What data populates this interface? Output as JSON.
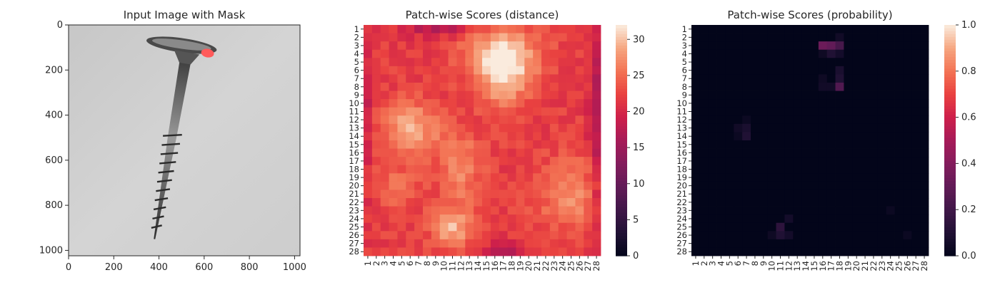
{
  "chart_data": [
    {
      "type": "image",
      "title": "Input Image with Mask",
      "xlim": [
        0,
        1024
      ],
      "ylim": [
        1024,
        0
      ],
      "xticks": [
        0,
        200,
        400,
        600,
        800,
        1000
      ],
      "yticks": [
        0,
        200,
        400,
        600,
        800,
        1000
      ],
      "mask_color": "#ff5a5a"
    },
    {
      "type": "heatmap",
      "title": "Patch-wise Scores (distance)",
      "rows": 28,
      "cols": 28,
      "row_labels": [
        "1",
        "2",
        "3",
        "4",
        "5",
        "6",
        "7",
        "8",
        "9",
        "10",
        "11",
        "12",
        "13",
        "14",
        "15",
        "16",
        "17",
        "18",
        "19",
        "20",
        "21",
        "22",
        "23",
        "24",
        "25",
        "26",
        "27",
        "28"
      ],
      "col_labels": [
        "1",
        "2",
        "3",
        "4",
        "5",
        "6",
        "7",
        "8",
        "9",
        "10",
        "11",
        "12",
        "13",
        "14",
        "15",
        "16",
        "17",
        "18",
        "19",
        "20",
        "21",
        "22",
        "23",
        "24",
        "25",
        "26",
        "27",
        "28"
      ],
      "vmin": 0,
      "vmax": 32,
      "colorbar_ticks": [
        0,
        5,
        10,
        15,
        20,
        25,
        30
      ],
      "base_value": 22,
      "bright_regions": [
        {
          "row": 4,
          "col": 17,
          "sr": 2.2,
          "sc": 3.0,
          "amp": 8
        },
        {
          "row": 7,
          "col": 17,
          "sr": 2.5,
          "sc": 2.2,
          "amp": 7
        },
        {
          "row": 13,
          "col": 6,
          "sr": 2.2,
          "sc": 2.5,
          "amp": 7
        },
        {
          "row": 18,
          "col": 12,
          "sr": 3.0,
          "sc": 1.8,
          "amp": 5
        },
        {
          "row": 25,
          "col": 11,
          "sr": 1.8,
          "sc": 1.8,
          "amp": 7
        },
        {
          "row": 21,
          "col": 25,
          "sr": 3.0,
          "sc": 2.8,
          "amp": 5
        },
        {
          "row": 20,
          "col": 4,
          "sr": 2.0,
          "sc": 2.0,
          "amp": 3
        }
      ],
      "dark_regions": [
        {
          "row": 1,
          "col": 9,
          "sr": 0.7,
          "sc": 2.5,
          "amp": 5
        },
        {
          "row": 12,
          "col": 28,
          "sr": 10.0,
          "sc": 0.6,
          "amp": 5
        },
        {
          "row": 12,
          "col": 1,
          "sr": 8.0,
          "sc": 0.6,
          "amp": 3
        },
        {
          "row": 28,
          "col": 17,
          "sr": 0.8,
          "sc": 2.0,
          "amp": 5
        }
      ]
    },
    {
      "type": "heatmap",
      "title": "Patch-wise Scores (probability)",
      "rows": 28,
      "cols": 28,
      "row_labels": [
        "1",
        "2",
        "3",
        "4",
        "5",
        "6",
        "7",
        "8",
        "9",
        "10",
        "11",
        "12",
        "13",
        "14",
        "15",
        "16",
        "17",
        "18",
        "19",
        "20",
        "21",
        "22",
        "23",
        "24",
        "25",
        "26",
        "27",
        "28"
      ],
      "col_labels": [
        "1",
        "2",
        "3",
        "4",
        "5",
        "6",
        "7",
        "8",
        "9",
        "10",
        "11",
        "12",
        "13",
        "14",
        "15",
        "16",
        "17",
        "18",
        "19",
        "20",
        "21",
        "22",
        "23",
        "24",
        "25",
        "26",
        "27",
        "28"
      ],
      "vmin": 0.0,
      "vmax": 1.0,
      "colorbar_ticks": [
        "0.0",
        "0.2",
        "0.4",
        "0.6",
        "0.8",
        "1.0"
      ],
      "base_value": 0.0,
      "cells": [
        {
          "row": 3,
          "col": 16,
          "value": 0.33
        },
        {
          "row": 3,
          "col": 17,
          "value": 0.3
        },
        {
          "row": 3,
          "col": 18,
          "value": 0.22
        },
        {
          "row": 2,
          "col": 18,
          "value": 0.05
        },
        {
          "row": 4,
          "col": 17,
          "value": 0.1
        },
        {
          "row": 4,
          "col": 16,
          "value": 0.04
        },
        {
          "row": 4,
          "col": 18,
          "value": 0.06
        },
        {
          "row": 6,
          "col": 18,
          "value": 0.08
        },
        {
          "row": 7,
          "col": 18,
          "value": 0.1
        },
        {
          "row": 7,
          "col": 16,
          "value": 0.04
        },
        {
          "row": 8,
          "col": 18,
          "value": 0.25
        },
        {
          "row": 8,
          "col": 16,
          "value": 0.05
        },
        {
          "row": 8,
          "col": 17,
          "value": 0.05
        },
        {
          "row": 12,
          "col": 7,
          "value": 0.03
        },
        {
          "row": 13,
          "col": 6,
          "value": 0.05
        },
        {
          "row": 13,
          "col": 7,
          "value": 0.08
        },
        {
          "row": 14,
          "col": 7,
          "value": 0.1
        },
        {
          "row": 14,
          "col": 6,
          "value": 0.03
        },
        {
          "row": 24,
          "col": 12,
          "value": 0.06
        },
        {
          "row": 25,
          "col": 11,
          "value": 0.14
        },
        {
          "row": 26,
          "col": 11,
          "value": 0.1
        },
        {
          "row": 26,
          "col": 12,
          "value": 0.06
        },
        {
          "row": 26,
          "col": 10,
          "value": 0.04
        },
        {
          "row": 23,
          "col": 24,
          "value": 0.03
        },
        {
          "row": 26,
          "col": 26,
          "value": 0.03
        }
      ]
    }
  ]
}
